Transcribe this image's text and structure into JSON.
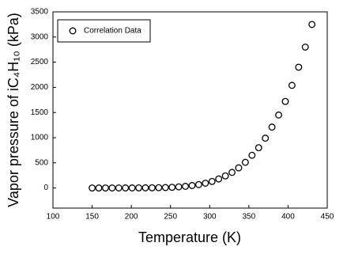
{
  "chart_data": {
    "type": "scatter",
    "xlabel": "Temperature (K)",
    "ylabel": "Vapor pressure of iC₄H₁₀ (kPa)",
    "series": [
      {
        "name": "Correlation Data",
        "color": "#000000",
        "x": [
          150,
          158.5,
          167,
          175.5,
          184,
          192.5,
          201,
          209.5,
          218,
          226.5,
          235,
          243.5,
          252,
          260.5,
          269,
          277.5,
          286,
          294.5,
          303,
          311.5,
          320,
          328.5,
          337,
          345.5,
          354,
          362.5,
          371,
          379.5,
          388,
          396.5,
          405,
          413.5,
          422,
          430.5
        ],
        "values": [
          0.1,
          0.2,
          0.3,
          0.5,
          0.7,
          1,
          1.5,
          2,
          3,
          4,
          6,
          9,
          14,
          22,
          33,
          48,
          68,
          95,
          130,
          180,
          240,
          310,
          400,
          510,
          650,
          800,
          990,
          1210,
          1450,
          1720,
          2040,
          2400,
          2800,
          3250
        ]
      }
    ],
    "xlim": [
      100,
      450
    ],
    "xticks": [
      100,
      150,
      200,
      250,
      300,
      350,
      400,
      450
    ],
    "ylim": [
      -400,
      3500
    ],
    "yticks": [
      0,
      500,
      1000,
      1500,
      2000,
      2500,
      3000,
      3500
    ],
    "grid": false,
    "legend": "upper left"
  }
}
